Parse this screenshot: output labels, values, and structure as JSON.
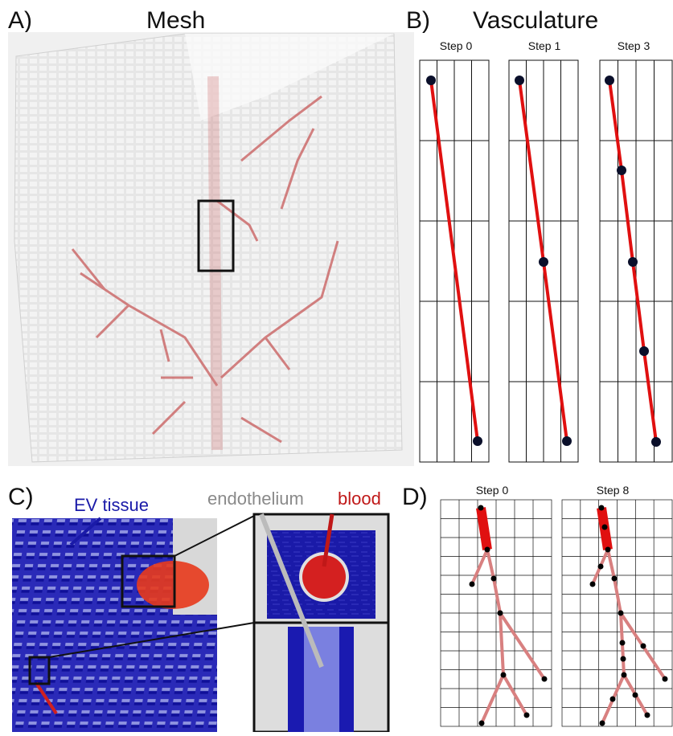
{
  "panel_a": {
    "label": "A)",
    "title": "Mesh"
  },
  "panel_b": {
    "label": "B)",
    "title": "Vasculature",
    "steps": [
      "Step 0",
      "Step 1",
      "Step 3"
    ]
  },
  "panel_c": {
    "label": "C)",
    "labels": [
      "EV tissue",
      "endothelium",
      "blood"
    ]
  },
  "panel_d": {
    "label": "D)",
    "steps": [
      "Step 0",
      "Step 8"
    ]
  }
}
